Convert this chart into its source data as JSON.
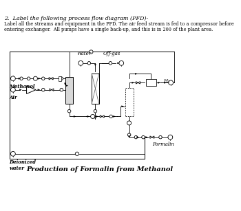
{
  "title_number": "2.",
  "title_text": "Label the following process flow diagram (PFD)-",
  "body_line1": "Label all the streams and equipment in the PFD. The air feed stream is fed to a compressor before",
  "body_line2": "entering exchanger.  All pumps have a single back-up, and this is in 200 of the plant area.",
  "stream_labels": {
    "methanol": "Methanol",
    "air": "Air",
    "water": "Water",
    "offgas": "Off-gas",
    "h2": "H₂",
    "formalin": "Formalin",
    "deionized_water": "Deionized\nwater"
  },
  "footer_text": "Production of Formalin from Methanol",
  "bg_color": "#ffffff",
  "line_color": "#000000",
  "figsize": [
    3.5,
    3.07
  ],
  "dpi": 100
}
